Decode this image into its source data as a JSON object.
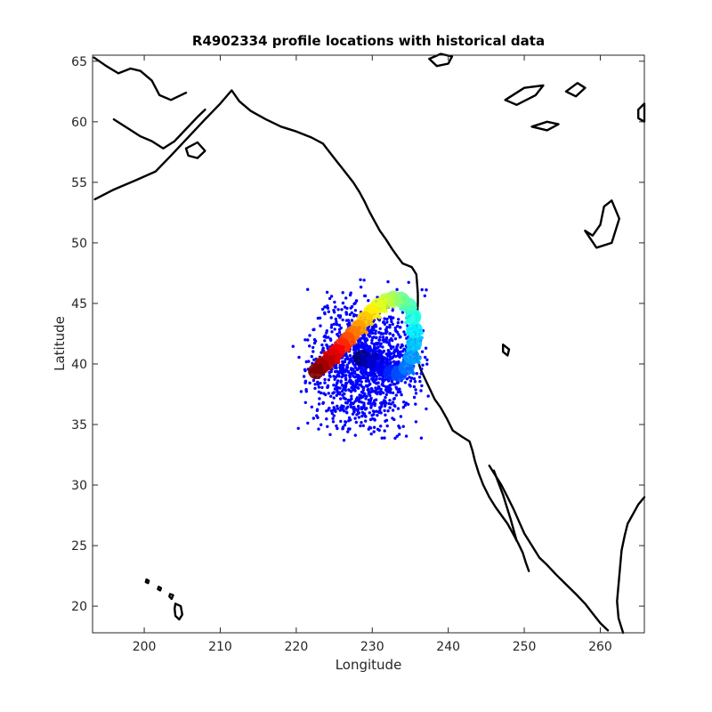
{
  "chart_data": {
    "type": "scatter",
    "title": "R4902334 profile locations with historical data",
    "xlabel": "Longitude",
    "ylabel": "Latitude",
    "xlim": [
      193.2,
      265.8
    ],
    "ylim": [
      17.8,
      65.5
    ],
    "xticks": [
      200,
      210,
      220,
      230,
      240,
      250,
      260
    ],
    "yticks": [
      20,
      25,
      30,
      35,
      40,
      45,
      50,
      55,
      60,
      65
    ],
    "grid": false,
    "colormap": "jet",
    "historical_color": "#0000ff",
    "historical_region": {
      "lon_range": [
        218.5,
        237.5
      ],
      "lat_range": [
        33.5,
        49.5
      ],
      "center": [
        229,
        40
      ]
    },
    "profiles": [
      {
        "lon": 222.6,
        "lat": 39.4,
        "t": 0.0
      },
      {
        "lon": 223.3,
        "lat": 39.8,
        "t": 0.03
      },
      {
        "lon": 224.0,
        "lat": 40.1,
        "t": 0.06
      },
      {
        "lon": 224.7,
        "lat": 40.6,
        "t": 0.09
      },
      {
        "lon": 225.3,
        "lat": 41.0,
        "t": 0.12
      },
      {
        "lon": 226.0,
        "lat": 41.5,
        "t": 0.16
      },
      {
        "lon": 226.7,
        "lat": 42.0,
        "t": 0.2
      },
      {
        "lon": 227.4,
        "lat": 42.5,
        "t": 0.24
      },
      {
        "lon": 228.2,
        "lat": 43.0,
        "t": 0.28
      },
      {
        "lon": 229.0,
        "lat": 43.7,
        "t": 0.32
      },
      {
        "lon": 229.9,
        "lat": 44.3,
        "t": 0.36
      },
      {
        "lon": 230.8,
        "lat": 44.8,
        "t": 0.4
      },
      {
        "lon": 231.8,
        "lat": 45.2,
        "t": 0.44
      },
      {
        "lon": 232.8,
        "lat": 45.4,
        "t": 0.48
      },
      {
        "lon": 233.8,
        "lat": 45.3,
        "t": 0.52
      },
      {
        "lon": 234.8,
        "lat": 44.8,
        "t": 0.56
      },
      {
        "lon": 235.4,
        "lat": 43.9,
        "t": 0.6
      },
      {
        "lon": 235.6,
        "lat": 42.8,
        "t": 0.64
      },
      {
        "lon": 235.5,
        "lat": 41.7,
        "t": 0.68
      },
      {
        "lon": 235.2,
        "lat": 40.6,
        "t": 0.72
      },
      {
        "lon": 234.5,
        "lat": 39.7,
        "t": 0.76
      },
      {
        "lon": 233.5,
        "lat": 39.2,
        "t": 0.8
      },
      {
        "lon": 232.5,
        "lat": 39.3,
        "t": 0.84
      },
      {
        "lon": 231.5,
        "lat": 39.6,
        "t": 0.88
      },
      {
        "lon": 230.5,
        "lat": 40.0,
        "t": 0.92
      },
      {
        "lon": 229.5,
        "lat": 40.3,
        "t": 0.96
      },
      {
        "lon": 228.6,
        "lat": 40.5,
        "t": 1.0
      }
    ],
    "coastlines": [
      {
        "name": "north-america-west-coast",
        "points": [
          [
            193.5,
            53.6
          ],
          [
            196,
            54.4
          ],
          [
            199,
            55.2
          ],
          [
            201.5,
            55.9
          ],
          [
            203.5,
            57.2
          ],
          [
            205,
            58.2
          ],
          [
            206.5,
            59.2
          ],
          [
            208,
            60.2
          ],
          [
            210,
            61.5
          ],
          [
            211.5,
            62.6
          ],
          [
            212.5,
            61.7
          ],
          [
            214,
            60.9
          ],
          [
            216,
            60.2
          ],
          [
            218,
            59.6
          ],
          [
            220,
            59.2
          ],
          [
            222,
            58.7
          ],
          [
            223.5,
            58.2
          ],
          [
            224.5,
            57.4
          ],
          [
            225.5,
            56.6
          ],
          [
            226.5,
            55.8
          ],
          [
            227.5,
            55.0
          ],
          [
            228.3,
            54.2
          ],
          [
            229,
            53.4
          ],
          [
            229.6,
            52.6
          ],
          [
            230.3,
            51.8
          ],
          [
            231.0,
            51.0
          ],
          [
            231.8,
            50.3
          ],
          [
            232.6,
            49.5
          ],
          [
            233.4,
            48.8
          ],
          [
            234.0,
            48.3
          ],
          [
            235.2,
            48.0
          ],
          [
            235.8,
            47.4
          ],
          [
            235.9,
            46.6
          ],
          [
            236.0,
            45.8
          ],
          [
            236.0,
            45.0
          ],
          [
            235.9,
            44.0
          ],
          [
            235.8,
            43.0
          ],
          [
            235.6,
            42.0
          ],
          [
            235.8,
            41.0
          ],
          [
            236.0,
            40.3
          ],
          [
            236.4,
            39.5
          ],
          [
            237.0,
            38.7
          ],
          [
            237.6,
            37.9
          ],
          [
            238.2,
            37.1
          ],
          [
            239.0,
            36.4
          ],
          [
            239.8,
            35.5
          ],
          [
            240.6,
            34.5
          ],
          [
            241.8,
            34.0
          ],
          [
            242.8,
            33.6
          ],
          [
            243.2,
            32.8
          ],
          [
            243.5,
            32.0
          ],
          [
            244.0,
            31.0
          ],
          [
            244.6,
            30.0
          ],
          [
            245.4,
            29.0
          ],
          [
            246.2,
            28.2
          ],
          [
            247.0,
            27.5
          ],
          [
            247.8,
            26.8
          ],
          [
            248.5,
            26.0
          ],
          [
            249.2,
            25.2
          ],
          [
            249.8,
            24.4
          ],
          [
            250.2,
            23.6
          ],
          [
            250.6,
            22.9
          ]
        ]
      },
      {
        "name": "gulf-of-california-east",
        "points": [
          [
            245.4,
            31.6
          ],
          [
            246.2,
            30.8
          ],
          [
            247.0,
            30.0
          ],
          [
            247.8,
            29.0
          ],
          [
            248.6,
            28.0
          ],
          [
            249.3,
            27.0
          ],
          [
            250.0,
            26.0
          ],
          [
            251.0,
            25.0
          ],
          [
            252.0,
            24.0
          ],
          [
            253.0,
            23.4
          ],
          [
            254.2,
            22.6
          ],
          [
            255.5,
            21.8
          ],
          [
            256.8,
            21.0
          ],
          [
            258.0,
            20.2
          ],
          [
            259.0,
            19.4
          ],
          [
            260.0,
            18.6
          ],
          [
            261.0,
            18.0
          ]
        ]
      },
      {
        "name": "baja-inner",
        "points": [
          [
            246.0,
            31.2
          ],
          [
            246.6,
            30.2
          ],
          [
            247.2,
            29.2
          ],
          [
            247.7,
            28.2
          ],
          [
            248.2,
            27.2
          ],
          [
            248.6,
            26.3
          ],
          [
            249.0,
            25.4
          ]
        ]
      },
      {
        "name": "gulf-of-mexico-coast",
        "points": [
          [
            263.0,
            17.8
          ],
          [
            262.4,
            19.0
          ],
          [
            262.2,
            20.4
          ],
          [
            262.4,
            21.8
          ],
          [
            262.6,
            23.2
          ],
          [
            262.8,
            24.6
          ],
          [
            263.2,
            25.8
          ],
          [
            263.6,
            26.8
          ],
          [
            264.3,
            27.6
          ],
          [
            265.0,
            28.4
          ],
          [
            265.8,
            29.0
          ]
        ]
      },
      {
        "name": "hawaii-big-island",
        "points": [
          [
            204.1,
            20.2
          ],
          [
            204.8,
            20.0
          ],
          [
            205.0,
            19.3
          ],
          [
            204.6,
            18.9
          ],
          [
            204.1,
            19.2
          ],
          [
            204.0,
            19.8
          ],
          [
            204.1,
            20.2
          ]
        ]
      },
      {
        "name": "hawaii-maui",
        "points": [
          [
            203.4,
            21.0
          ],
          [
            203.8,
            20.9
          ],
          [
            203.6,
            20.6
          ],
          [
            203.3,
            20.8
          ],
          [
            203.4,
            21.0
          ]
        ]
      },
      {
        "name": "hawaii-oahu",
        "points": [
          [
            201.9,
            21.6
          ],
          [
            202.2,
            21.5
          ],
          [
            202.1,
            21.3
          ],
          [
            201.8,
            21.4
          ],
          [
            201.9,
            21.6
          ]
        ]
      },
      {
        "name": "hawaii-kauai",
        "points": [
          [
            200.3,
            22.2
          ],
          [
            200.6,
            22.1
          ],
          [
            200.5,
            21.9
          ],
          [
            200.2,
            22.0
          ],
          [
            200.3,
            22.2
          ]
        ]
      },
      {
        "name": "alaska-peninsula-north",
        "points": [
          [
            196.0,
            60.2
          ],
          [
            198.0,
            59.4
          ],
          [
            199.5,
            58.8
          ],
          [
            201.0,
            58.4
          ],
          [
            202.5,
            57.8
          ],
          [
            204.0,
            58.4
          ],
          [
            205.5,
            59.4
          ],
          [
            207.0,
            60.4
          ],
          [
            208.0,
            61.0
          ]
        ]
      },
      {
        "name": "alaska-upper-coast",
        "points": [
          [
            193.4,
            65.3
          ],
          [
            195.0,
            64.6
          ],
          [
            196.6,
            64.0
          ],
          [
            198.2,
            64.4
          ],
          [
            199.5,
            64.2
          ],
          [
            201.0,
            63.4
          ],
          [
            202.0,
            62.2
          ],
          [
            203.5,
            61.8
          ],
          [
            205.5,
            62.4
          ]
        ]
      },
      {
        "name": "kodiak-island",
        "points": [
          [
            205.5,
            57.8
          ],
          [
            207.0,
            58.3
          ],
          [
            208.0,
            57.6
          ],
          [
            207.0,
            57.0
          ],
          [
            205.8,
            57.2
          ],
          [
            205.5,
            57.8
          ]
        ]
      },
      {
        "name": "hudson-bay-island-a",
        "points": [
          [
            247.5,
            61.8
          ],
          [
            250.0,
            62.8
          ],
          [
            252.5,
            63.0
          ],
          [
            251.5,
            62.2
          ],
          [
            249.0,
            61.4
          ],
          [
            247.5,
            61.8
          ]
        ]
      },
      {
        "name": "hudson-bay-island-b",
        "points": [
          [
            251.0,
            59.6
          ],
          [
            253.0,
            60.0
          ],
          [
            254.5,
            59.8
          ],
          [
            253.0,
            59.3
          ],
          [
            251.0,
            59.6
          ]
        ]
      },
      {
        "name": "hudson-bay-island-c",
        "points": [
          [
            255.5,
            62.5
          ],
          [
            257.0,
            63.2
          ],
          [
            258.0,
            62.8
          ],
          [
            256.8,
            62.1
          ],
          [
            255.5,
            62.5
          ]
        ]
      },
      {
        "name": "arctic-island-top",
        "points": [
          [
            237.5,
            65.2
          ],
          [
            238.5,
            64.6
          ],
          [
            240.0,
            64.8
          ],
          [
            240.5,
            65.4
          ],
          [
            239.0,
            65.6
          ],
          [
            237.5,
            65.2
          ]
        ]
      },
      {
        "name": "inland-lakes",
        "points": [
          [
            258.0,
            51.0
          ],
          [
            259.0,
            50.6
          ],
          [
            260.0,
            51.5
          ],
          [
            260.5,
            53.0
          ],
          [
            261.5,
            53.5
          ],
          [
            262.5,
            52.0
          ],
          [
            261.5,
            50.0
          ],
          [
            259.5,
            49.6
          ],
          [
            258.0,
            51.0
          ]
        ]
      },
      {
        "name": "island-east-small",
        "points": [
          [
            265.0,
            61.0
          ],
          [
            265.8,
            61.5
          ],
          [
            265.8,
            60.0
          ],
          [
            265.0,
            60.3
          ],
          [
            265.0,
            61.0
          ]
        ]
      },
      {
        "name": "pacific-small-island",
        "points": [
          [
            247.2,
            41.6
          ],
          [
            248.0,
            41.2
          ],
          [
            247.8,
            40.7
          ],
          [
            247.2,
            41.0
          ],
          [
            247.2,
            41.6
          ]
        ]
      }
    ]
  }
}
